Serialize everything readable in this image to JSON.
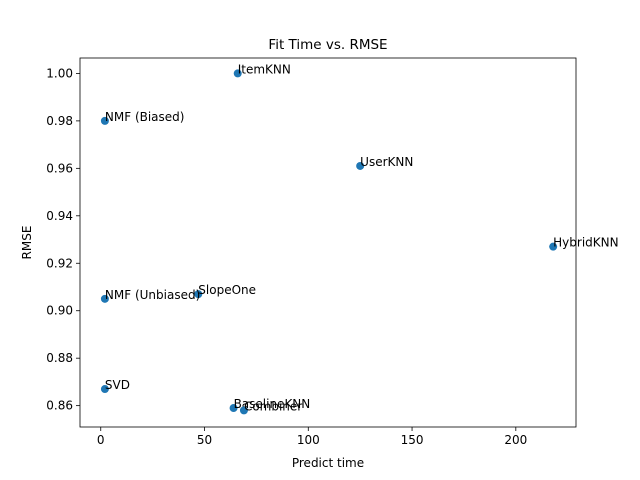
{
  "chart_data": {
    "type": "scatter",
    "title": "Fit Time vs. RMSE",
    "xlabel": "Predict time",
    "ylabel": "RMSE",
    "xlim": [
      -10,
      229
    ],
    "ylim": [
      0.851,
      1.0065
    ],
    "xticks": [
      0,
      50,
      100,
      150,
      200
    ],
    "yticks": [
      0.86,
      0.88,
      0.9,
      0.92,
      0.94,
      0.96,
      0.98,
      1.0
    ],
    "xtick_labels": [
      "0",
      "50",
      "100",
      "150",
      "200"
    ],
    "ytick_labels": [
      "0.86",
      "0.88",
      "0.90",
      "0.92",
      "0.94",
      "0.96",
      "0.98",
      "1.00"
    ],
    "grid": false,
    "point_color": "#1f77b4",
    "points": [
      {
        "label": "ItemKNN",
        "x": 66,
        "y": 1.0
      },
      {
        "label": "NMF (Biased)",
        "x": 2,
        "y": 0.98
      },
      {
        "label": "UserKNN",
        "x": 125,
        "y": 0.961
      },
      {
        "label": "HybridKNN",
        "x": 218,
        "y": 0.927
      },
      {
        "label": "SlopeOne",
        "x": 47,
        "y": 0.907
      },
      {
        "label": "NMF (Unbiased)",
        "x": 2,
        "y": 0.905
      },
      {
        "label": "SVD",
        "x": 2,
        "y": 0.867
      },
      {
        "label": "BaselineKNN",
        "x": 64,
        "y": 0.859
      },
      {
        "label": "Combiner",
        "x": 69,
        "y": 0.858
      }
    ]
  }
}
